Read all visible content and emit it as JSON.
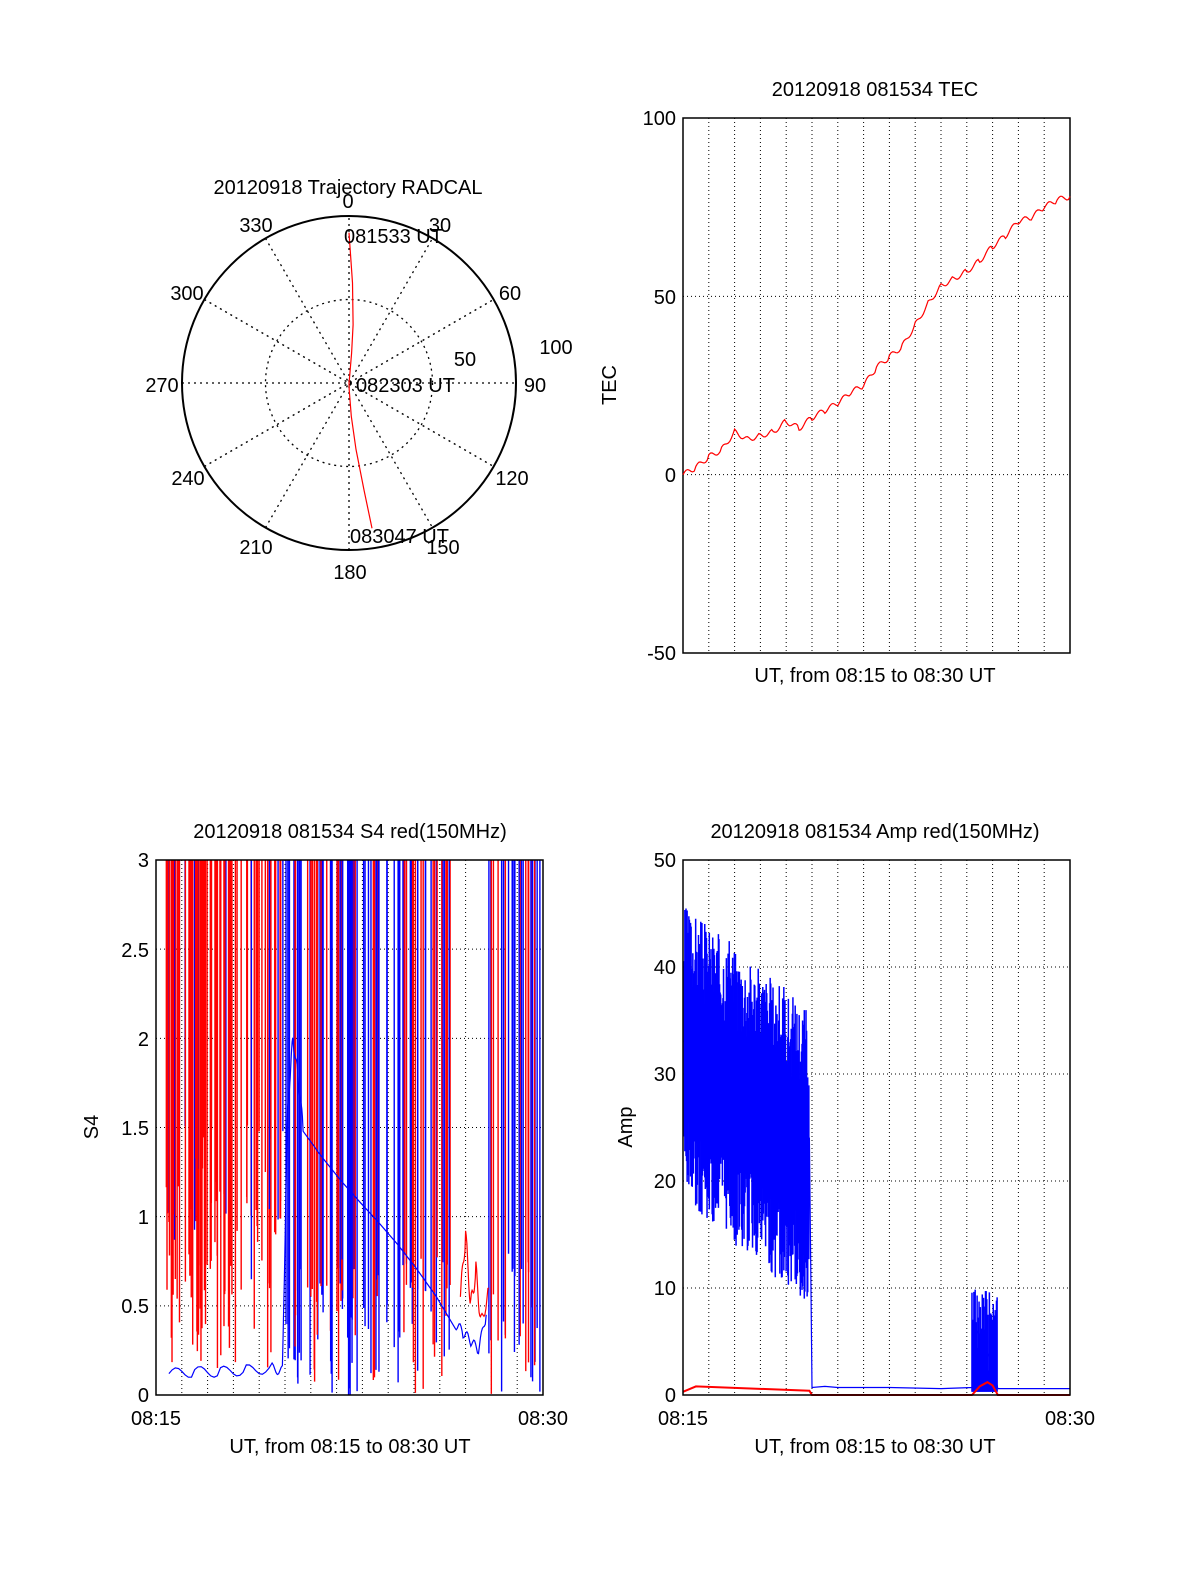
{
  "colors": {
    "red": "#ff0000",
    "blue": "#0000ff",
    "axis": "#000000",
    "grid": "#000000"
  },
  "chart_data": [
    {
      "type": "polar",
      "title": "20120918 Trajectory RADCAL",
      "azimuth_labels": [
        "0",
        "30",
        "60",
        "90",
        "120",
        "150",
        "180",
        "210",
        "240",
        "270",
        "300",
        "330"
      ],
      "radial_labels": [
        "50",
        "100"
      ],
      "radial_range": [
        0,
        100
      ],
      "track": {
        "color": "red",
        "points": [
          [
            0,
            90
          ],
          [
            2,
            60
          ],
          [
            4,
            35
          ],
          [
            5,
            18
          ],
          [
            6,
            3
          ],
          [
            90,
            0
          ],
          [
            178,
            4
          ],
          [
            176,
            20
          ],
          [
            174,
            40
          ],
          [
            172,
            65
          ],
          [
            171,
            88
          ]
        ]
      },
      "annotations": [
        {
          "text": "081533 UT",
          "at": "start"
        },
        {
          "text": "082303 UT",
          "at": "center"
        },
        {
          "text": "083047 UT",
          "at": "end"
        }
      ]
    },
    {
      "type": "line",
      "title": "20120918 081534 TEC",
      "xlabel": "UT, from 08:15 to 08:30 UT",
      "ylabel": "TEC",
      "xlim": [
        "08:15",
        "08:30"
      ],
      "ylim": [
        -50,
        100
      ],
      "yticks": [
        "-50",
        "0",
        "50",
        "100"
      ],
      "grid": true,
      "series": [
        {
          "color": "red",
          "x_minutes": [
            0,
            0.5,
            1,
            1.5,
            2,
            2.5,
            3,
            3.5,
            4,
            4.5,
            5,
            5.5,
            6,
            6.5,
            7,
            7.5,
            8,
            8.5,
            9,
            9.5,
            10,
            10.5,
            11,
            11.5,
            12,
            12.5,
            13,
            13.5,
            14,
            14.5,
            15
          ],
          "values": [
            0,
            2,
            5,
            7,
            12,
            10,
            11,
            12,
            15,
            13,
            16,
            18,
            20,
            23,
            25,
            30,
            33,
            36,
            42,
            48,
            53,
            55,
            57,
            60,
            64,
            67,
            71,
            72,
            75,
            77,
            78
          ]
        }
      ]
    },
    {
      "type": "line",
      "title": "20120918 081534 S4 red(150MHz)",
      "xlabel": "UT, from 08:15 to 08:30 UT",
      "ylabel": "S4",
      "xlim": [
        "08:15",
        "08:30"
      ],
      "ylim": [
        0,
        3
      ],
      "xticks": [
        "08:15",
        "08:30"
      ],
      "yticks": [
        "0",
        "0.5",
        "1",
        "1.5",
        "2",
        "2.5",
        "3"
      ],
      "grid": true,
      "series": [
        {
          "color": "red",
          "x_minutes": [
            0.5,
            11.8,
            12.0,
            12.2,
            12.4,
            12.6,
            12.9
          ],
          "values": [
            3,
            0.55,
            0.9,
            0.5,
            0.7,
            0.4,
            0.6
          ]
        },
        {
          "color": "blue",
          "x_minutes": [
            0.5,
            1.5,
            2.5,
            3.5,
            4.5,
            4.9,
            5.1,
            5.3,
            5.5,
            5.7,
            11.6,
            11.9,
            12.2,
            12.5,
            12.8
          ],
          "values": [
            0.12,
            0.13,
            0.13,
            0.14,
            0.15,
            0.14,
            1.6,
            2.0,
            1.8,
            1.5,
            0.4,
            0.35,
            0.3,
            0.25,
            0.45
          ]
        }
      ]
    },
    {
      "type": "line",
      "title": "20120918 081534 Amp red(150MHz)",
      "xlabel": "UT, from 08:15 to 08:30 UT",
      "ylabel": "Amp",
      "xlim": [
        "08:15",
        "08:30"
      ],
      "ylim": [
        0,
        50
      ],
      "xticks": [
        "08:15",
        "08:30"
      ],
      "yticks": [
        "0",
        "10",
        "20",
        "30",
        "40",
        "50"
      ],
      "grid": true,
      "series": [
        {
          "color": "blue",
          "x_minutes": [
            0,
            0.5,
            1,
            1.5,
            2,
            2.5,
            3,
            3.5,
            4,
            4.5,
            4.9,
            5.0,
            5.5,
            6,
            8,
            10,
            11.2,
            11.4,
            11.6,
            11.8,
            12.0,
            12.2,
            13,
            15
          ],
          "values": [
            33,
            34,
            33,
            31,
            30,
            28,
            27,
            26,
            25,
            24,
            24,
            0.7,
            0.8,
            0.7,
            0.7,
            0.6,
            0.7,
            6,
            5,
            4,
            3,
            0.6,
            0.6,
            0.6
          ]
        },
        {
          "color": "red",
          "x_minutes": [
            0,
            0.5,
            4.9,
            5.0,
            11.2,
            11.5,
            11.8,
            12.0,
            12.2,
            15
          ],
          "values": [
            0.3,
            0.8,
            0.4,
            0.0,
            0.0,
            0.8,
            1.2,
            0.9,
            0.0,
            0.0
          ]
        }
      ]
    }
  ]
}
